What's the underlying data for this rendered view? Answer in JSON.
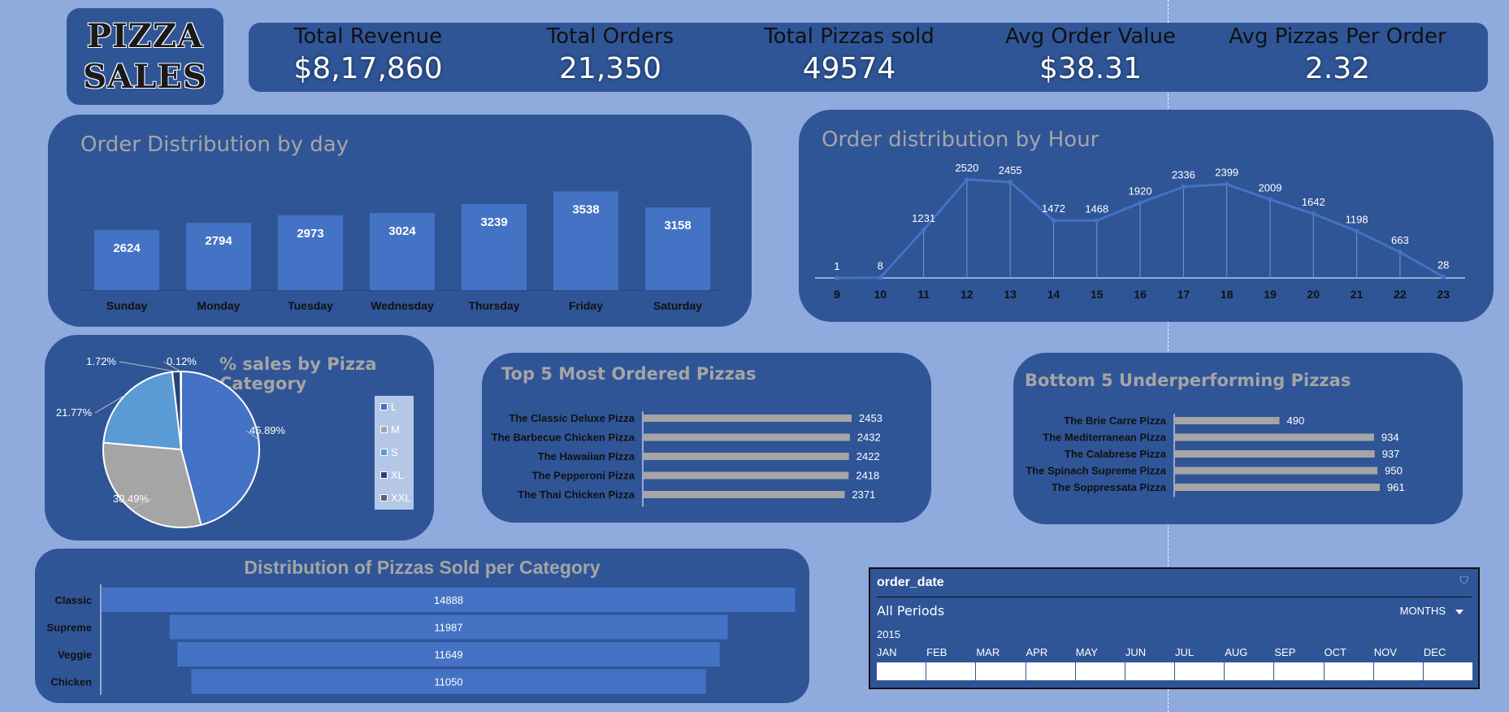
{
  "logo": {
    "line1": "PIZZA",
    "line2": "SALES"
  },
  "kpis": [
    {
      "label": "Total Revenue",
      "value": "$8,17,860"
    },
    {
      "label": "Total Orders",
      "value": "21,350"
    },
    {
      "label": "Total Pizzas sold",
      "value": "49574"
    },
    {
      "label": "Avg Order Value",
      "value": "$38.31"
    },
    {
      "label": "Avg Pizzas Per Order",
      "value": "2.32"
    }
  ],
  "colors": {
    "background": "#8faadc",
    "panel": "#2f5597",
    "bar": "#4472c4",
    "title": "#a5a5a5"
  },
  "chart_data": [
    {
      "type": "bar",
      "title": "Order Distribution by day",
      "categories": [
        "Sunday",
        "Monday",
        "Tuesday",
        "Wednesday",
        "Thursday",
        "Friday",
        "Saturday"
      ],
      "values": [
        2624,
        2794,
        2973,
        3024,
        3239,
        3538,
        3158
      ]
    },
    {
      "type": "line",
      "title": "Order distribution by Hour",
      "x": [
        9,
        10,
        11,
        12,
        13,
        14,
        15,
        16,
        17,
        18,
        19,
        20,
        21,
        22,
        23
      ],
      "values": [
        1,
        8,
        1231,
        2520,
        2455,
        1472,
        1468,
        1920,
        2336,
        2399,
        2009,
        1642,
        1198,
        663,
        28
      ]
    },
    {
      "type": "pie",
      "title": "% sales by Pizza Category",
      "categories": [
        "L",
        "M",
        "S",
        "XL",
        "XXL"
      ],
      "values": [
        45.89,
        30.49,
        21.77,
        1.72,
        0.12
      ],
      "labels": [
        "45.89%",
        "30.49%",
        "21.77%",
        "1.72%",
        "0.12%"
      ]
    },
    {
      "type": "bar",
      "title": "Top 5 Most Ordered Pizzas",
      "orientation": "horizontal",
      "categories": [
        "The Classic Deluxe Pizza",
        "The Barbecue Chicken Pizza",
        "The Hawaiian Pizza",
        "The Pepperoni Pizza",
        "The Thai Chicken Pizza"
      ],
      "values": [
        2453,
        2432,
        2422,
        2418,
        2371
      ]
    },
    {
      "type": "bar",
      "title": "Bottom 5 Underperforming Pizzas",
      "orientation": "horizontal",
      "categories": [
        "The Brie Carre Pizza",
        "The Mediterranean Pizza",
        "The Calabrese Pizza",
        "The Spinach Supreme Pizza",
        "The Soppressata Pizza"
      ],
      "values": [
        490,
        934,
        937,
        950,
        961
      ]
    },
    {
      "type": "bar",
      "title": "Distribution of Pizzas Sold per Category",
      "orientation": "funnel",
      "categories": [
        "Classic",
        "Supreme",
        "Veggie",
        "Chicken"
      ],
      "values": [
        14888,
        11987,
        11649,
        11050
      ]
    }
  ],
  "slicer": {
    "field": "order_date",
    "period": "All Periods",
    "mode": "MONTHS",
    "year": "2015",
    "months": [
      "JAN",
      "FEB",
      "MAR",
      "APR",
      "MAY",
      "JUN",
      "JUL",
      "AUG",
      "SEP",
      "OCT",
      "NOV",
      "DEC"
    ]
  }
}
